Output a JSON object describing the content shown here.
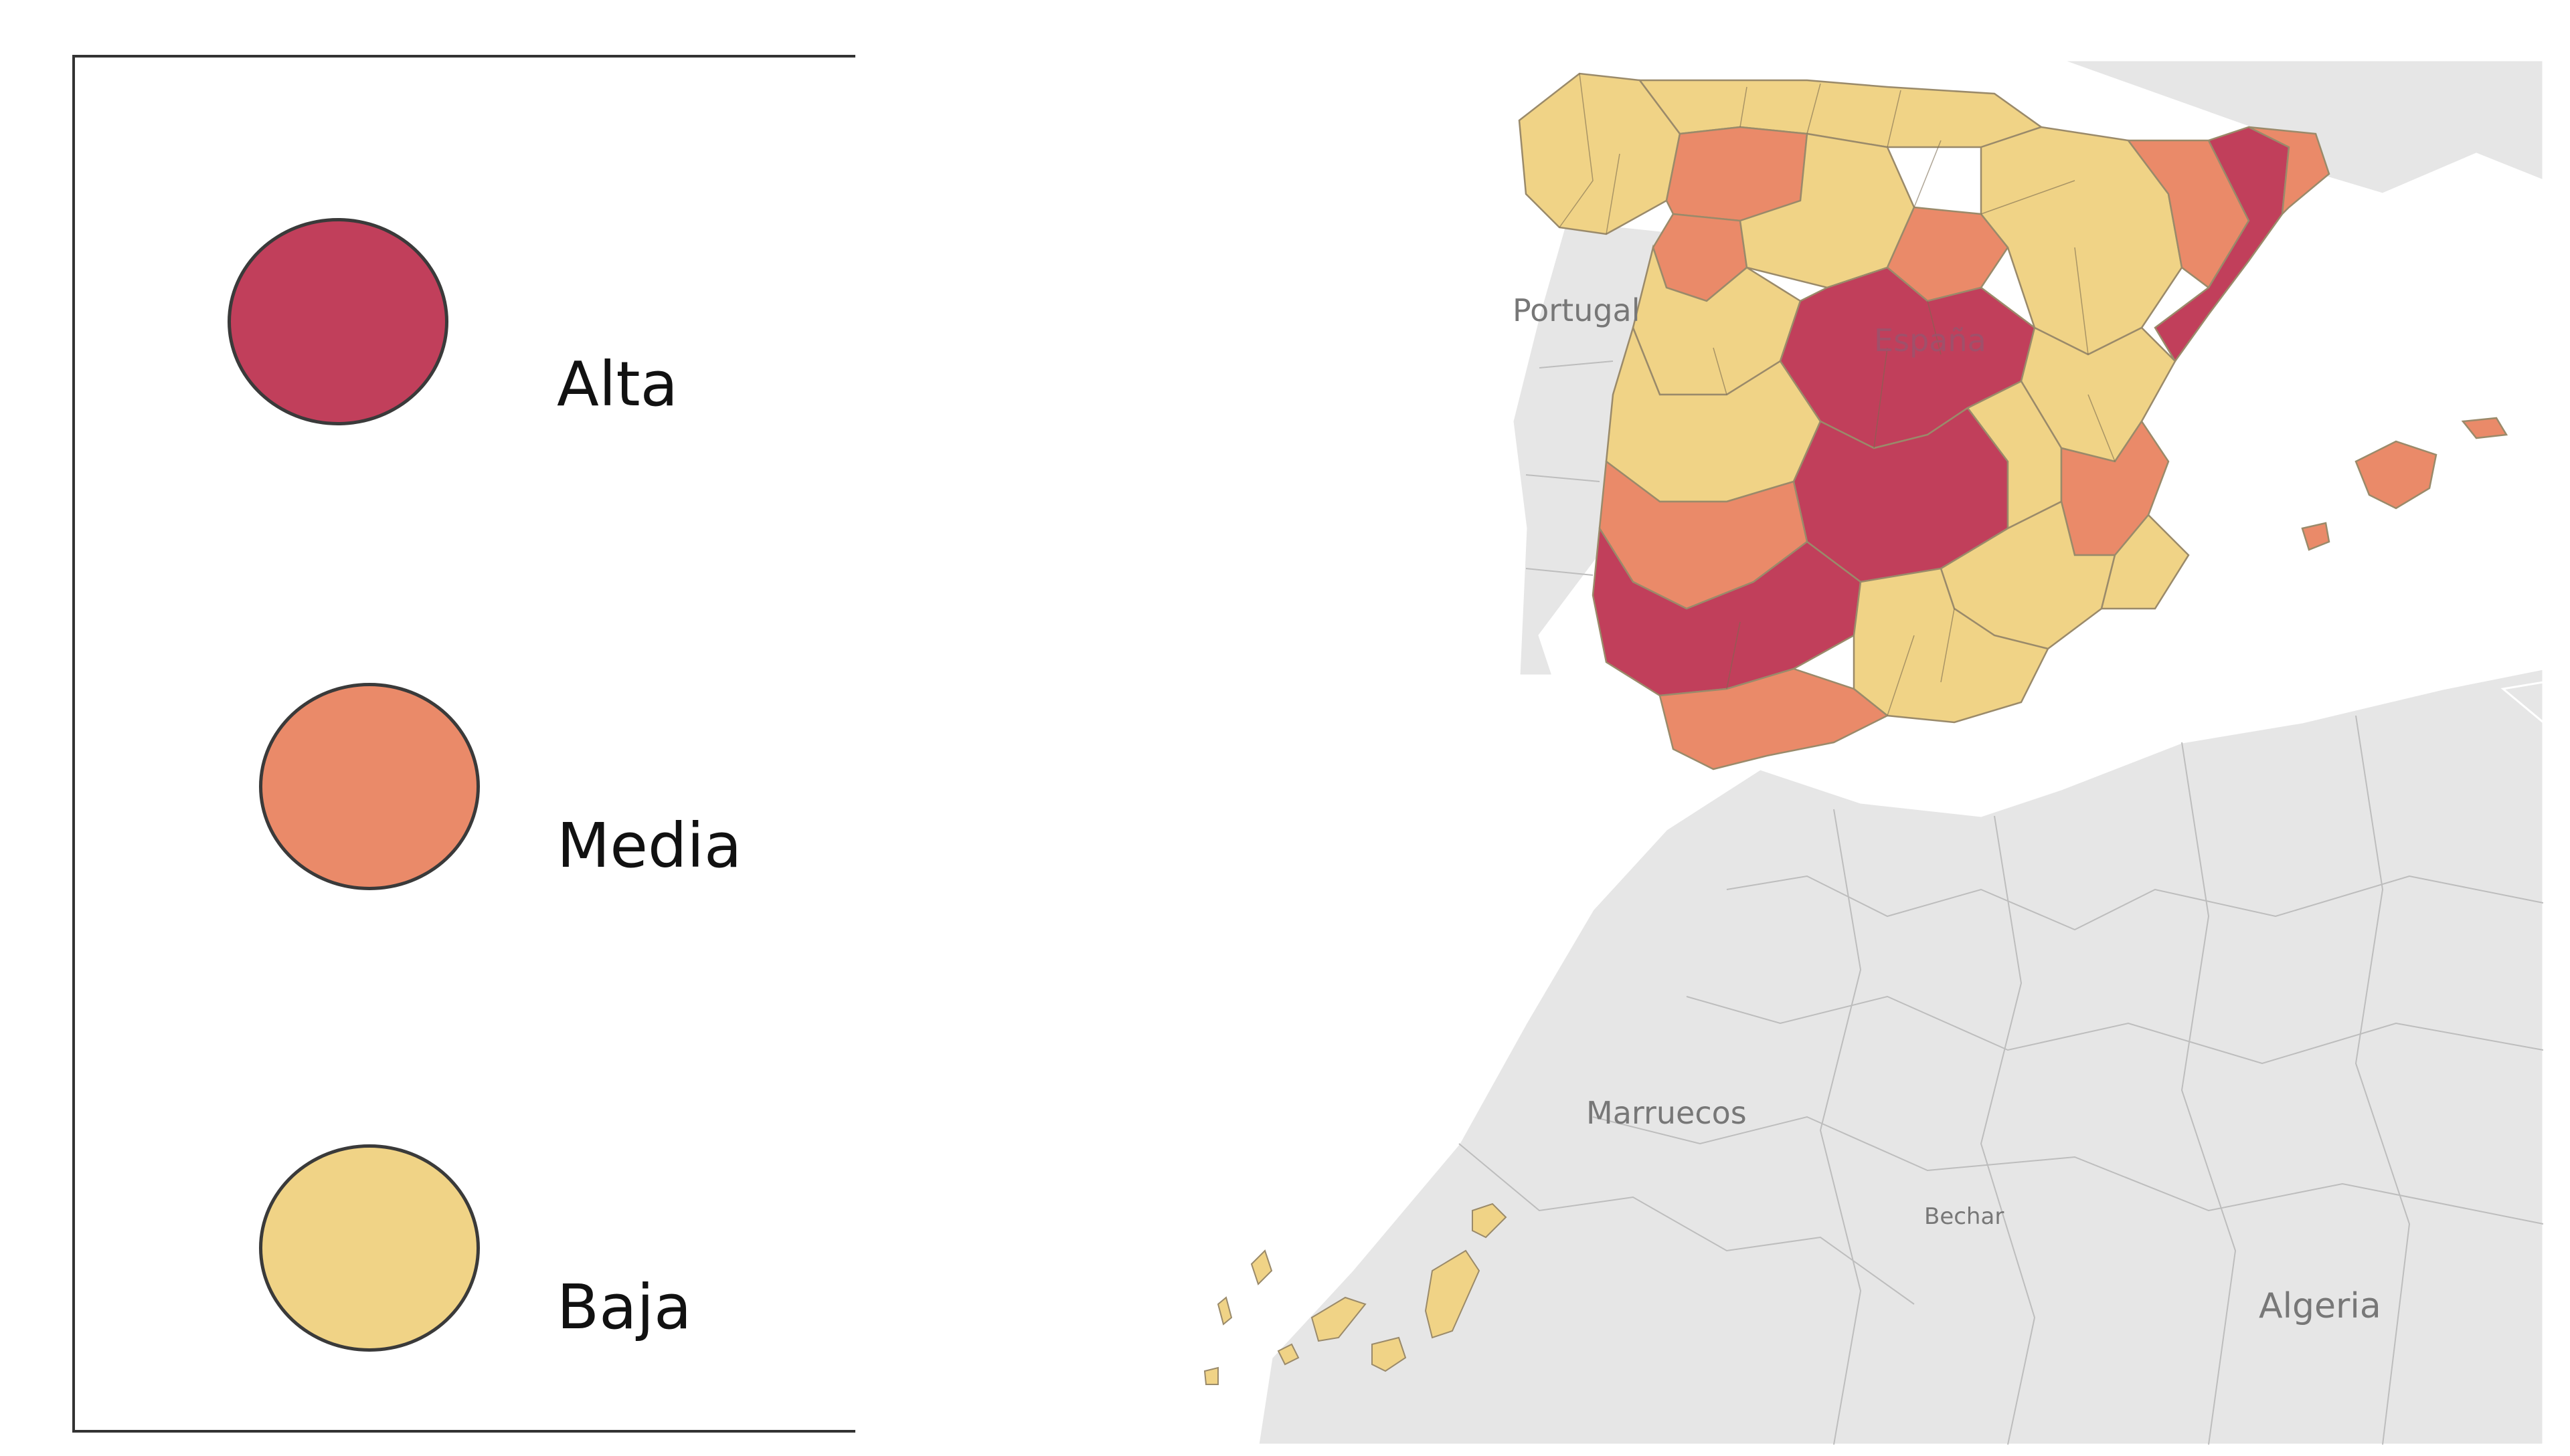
{
  "legend": {
    "items": [
      {
        "label": "Alta",
        "color": "#C13F5B"
      },
      {
        "label": "Media",
        "color": "#EA8A69"
      },
      {
        "label": "Baja",
        "color": "#F0D386"
      }
    ]
  },
  "map": {
    "labels": {
      "portugal": "Portugal",
      "espana": "España",
      "marruecos": "Marruecos",
      "bechar": "Bechar",
      "algeria": "Algeria"
    },
    "colors": {
      "land": "#E6E6E6",
      "borders": "#FFFFFF",
      "alta": "#C13F5B",
      "media": "#EA8A69",
      "baja": "#F0D386"
    }
  }
}
